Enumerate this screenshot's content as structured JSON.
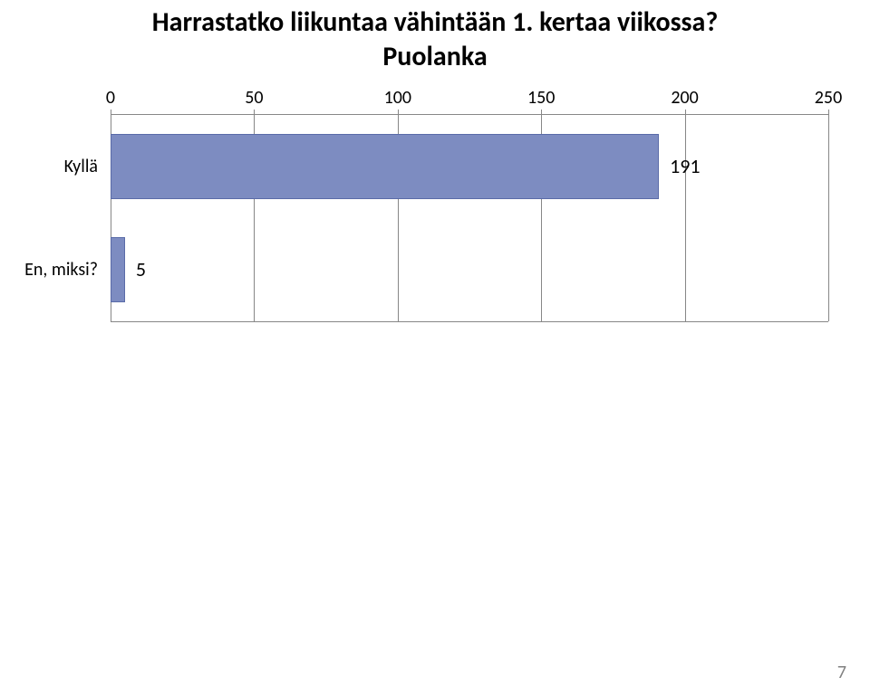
{
  "title": "Harrastatko liikuntaa vähintään 1. kertaa viikossa?\nPuolanka",
  "chart": {
    "type": "bar",
    "orientation": "horizontal",
    "xlim": [
      0,
      250
    ],
    "xtick_step": 50,
    "xticks": [
      0,
      50,
      100,
      150,
      200,
      250
    ],
    "bar_color": "#7d8cc1",
    "bar_border_color": "#5a6ba8",
    "axis_line_color": "#878787",
    "grid_color": "#878787",
    "background_color": "#ffffff",
    "label_fontsize": 20,
    "value_fontsize": 22,
    "bar_height_pct": 32,
    "categories": [
      {
        "label": "Kyllä",
        "value": 191
      },
      {
        "label": "En, miksi?",
        "value": 5
      }
    ]
  },
  "page_number": "7"
}
